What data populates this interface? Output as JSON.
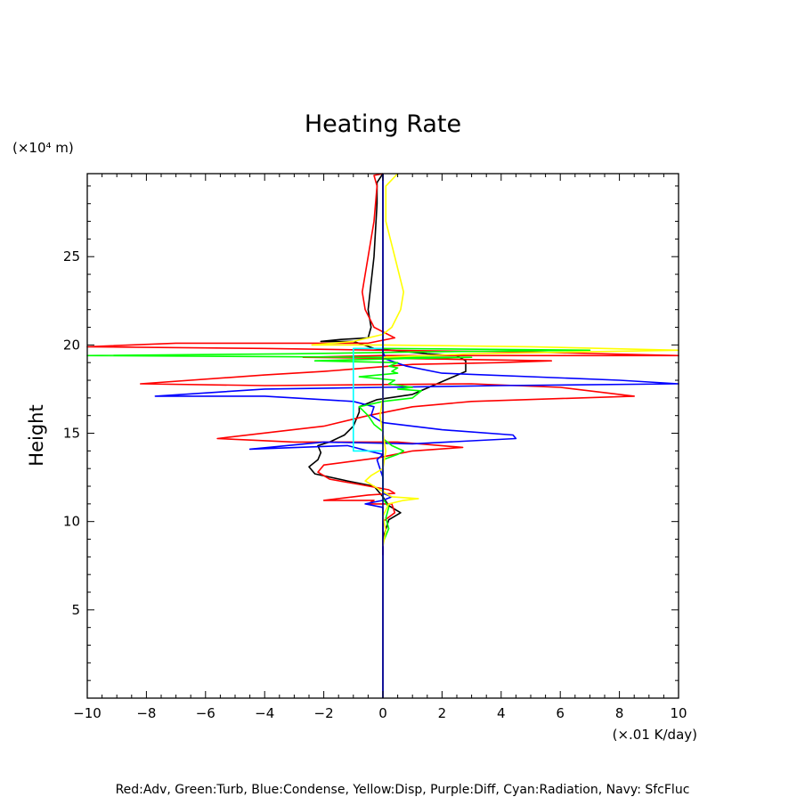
{
  "chart_data": {
    "type": "line",
    "title": "Heating Rate",
    "ylabel": "Height",
    "yunit": "(×10⁴ m)",
    "xunit": "(×.01 K/day)",
    "xlim": [
      -10,
      10
    ],
    "ylim": [
      0,
      29.7
    ],
    "xticks": [
      -10,
      -8,
      -6,
      -4,
      -2,
      0,
      2,
      4,
      6,
      8,
      10
    ],
    "xtick_labels": [
      "−10",
      "−8",
      "−6",
      "−4",
      "−2",
      "0",
      "2",
      "4",
      "6",
      "8",
      "10"
    ],
    "yticks": [
      5,
      10,
      15,
      20,
      25
    ],
    "ytick_labels": [
      "5",
      "10",
      "15",
      "20",
      "25"
    ],
    "grid": false,
    "legend_text": "Red:Adv, Green:Turb, Blue:Condense, Yellow:Disp, Purple:Diff, Cyan:Radiation, Navy: SfcFluc",
    "series": [
      {
        "color": "#000000",
        "points": [
          [
            0,
            8.1
          ],
          [
            0,
            9
          ],
          [
            0.2,
            10.1
          ],
          [
            0.6,
            10.5
          ],
          [
            0.2,
            10.9
          ],
          [
            0,
            11.4
          ],
          [
            -0.3,
            12
          ],
          [
            -1.2,
            12.3
          ],
          [
            -2.3,
            12.7
          ],
          [
            -2.5,
            13.1
          ],
          [
            -2.2,
            13.5
          ],
          [
            -2.1,
            13.9
          ],
          [
            -2.2,
            14.3
          ],
          [
            -1.8,
            14.5
          ],
          [
            -1.3,
            14.9
          ],
          [
            -1,
            15.4
          ],
          [
            -0.8,
            16.2
          ],
          [
            -0.8,
            16.5
          ],
          [
            -0.2,
            16.9
          ],
          [
            1,
            17.2
          ],
          [
            2.8,
            18.5
          ],
          [
            2.8,
            19.1
          ],
          [
            2.5,
            19.4
          ],
          [
            1.5,
            19.5
          ],
          [
            -0.3,
            19.8
          ],
          [
            -1,
            20.2
          ],
          [
            -2.1,
            20.2
          ],
          [
            -1.5,
            20.3
          ],
          [
            -0.5,
            20.4
          ],
          [
            -0.4,
            21
          ],
          [
            -0.5,
            22
          ],
          [
            -0.3,
            25
          ],
          [
            -0.2,
            28
          ],
          [
            -0.2,
            29.2
          ],
          [
            0,
            29.7
          ]
        ]
      },
      {
        "color": "#ff0000",
        "points": [
          [
            0,
            8.1
          ],
          [
            0,
            10
          ],
          [
            0.4,
            10.5
          ],
          [
            0.3,
            11
          ],
          [
            -0.5,
            11
          ],
          [
            -0.3,
            11.2
          ],
          [
            -2,
            11.2
          ],
          [
            -0.5,
            11.5
          ],
          [
            0.4,
            11.6
          ],
          [
            0.2,
            11.8
          ],
          [
            -0.8,
            12.1
          ],
          [
            -1.8,
            12.4
          ],
          [
            -2.2,
            12.8
          ],
          [
            -2,
            13.2
          ],
          [
            -0.2,
            13.6
          ],
          [
            1,
            14
          ],
          [
            2.7,
            14.2
          ],
          [
            0.5,
            14.5
          ],
          [
            -3,
            14.5
          ],
          [
            -5.6,
            14.7
          ],
          [
            -2,
            15.4
          ],
          [
            -0.5,
            16
          ],
          [
            1,
            16.5
          ],
          [
            3,
            16.8
          ],
          [
            8.5,
            17.1
          ],
          [
            6,
            17.6
          ],
          [
            3,
            17.8
          ],
          [
            -4,
            17.7
          ],
          [
            -8.2,
            17.8
          ],
          [
            -4,
            18.3
          ],
          [
            -2,
            18.5
          ],
          [
            -0.5,
            18.7
          ],
          [
            1,
            18.9
          ],
          [
            4,
            19
          ],
          [
            5.7,
            19.1
          ],
          [
            2,
            19.2
          ],
          [
            -2.7,
            19.3
          ],
          [
            0,
            19.4
          ],
          [
            10,
            19.4
          ],
          [
            5,
            19.6
          ],
          [
            0,
            19.7
          ],
          [
            -4,
            19.8
          ],
          [
            -10,
            19.9
          ],
          [
            -7,
            20.1
          ],
          [
            -0.5,
            20.1
          ],
          [
            0.4,
            20.4
          ],
          [
            -0.3,
            21
          ],
          [
            -0.6,
            22
          ],
          [
            -0.7,
            23
          ],
          [
            -0.5,
            25
          ],
          [
            -0.3,
            27
          ],
          [
            -0.2,
            29
          ],
          [
            -0.3,
            29.6
          ],
          [
            0,
            29.7
          ]
        ]
      },
      {
        "color": "#0000ff",
        "points": [
          [
            0,
            0
          ],
          [
            0,
            10.8
          ],
          [
            -0.6,
            11
          ],
          [
            0,
            11.2
          ],
          [
            0.3,
            11.4
          ],
          [
            0,
            11.6
          ],
          [
            0,
            12.5
          ],
          [
            -0.1,
            13
          ],
          [
            -0.2,
            13.5
          ],
          [
            0,
            13.8
          ],
          [
            -0.5,
            14
          ],
          [
            -1.2,
            14.3
          ],
          [
            -4.5,
            14.1
          ],
          [
            -2,
            14.5
          ],
          [
            1,
            14.4
          ],
          [
            4.5,
            14.7
          ],
          [
            4.4,
            14.9
          ],
          [
            2,
            15.2
          ],
          [
            0,
            15.6
          ],
          [
            -0.4,
            16
          ],
          [
            -0.3,
            16.5
          ],
          [
            -1,
            16.8
          ],
          [
            -4,
            17.1
          ],
          [
            -7.7,
            17.1
          ],
          [
            -4,
            17.5
          ],
          [
            0,
            17.6
          ],
          [
            4,
            17.7
          ],
          [
            10,
            17.8
          ],
          [
            8,
            18
          ],
          [
            2,
            18.4
          ],
          [
            0.8,
            18.8
          ],
          [
            0.1,
            19.2
          ],
          [
            0,
            19.6
          ],
          [
            0,
            29.7
          ]
        ]
      },
      {
        "color": "#00ff00",
        "points": [
          [
            0,
            8.8
          ],
          [
            0.2,
            9.6
          ],
          [
            0.1,
            10.2
          ],
          [
            0.2,
            10.8
          ],
          [
            0,
            11.3
          ],
          [
            0,
            12
          ],
          [
            0,
            12.8
          ],
          [
            0,
            13.5
          ],
          [
            0.5,
            13.8
          ],
          [
            0.7,
            14
          ],
          [
            0.3,
            14.3
          ],
          [
            0,
            14.7
          ],
          [
            0,
            15.1
          ],
          [
            -0.3,
            15.5
          ],
          [
            -0.5,
            16
          ],
          [
            -0.8,
            16.5
          ],
          [
            0,
            16.8
          ],
          [
            1,
            17
          ],
          [
            1.3,
            17.4
          ],
          [
            0.5,
            17.5
          ],
          [
            1,
            17.6
          ],
          [
            0.2,
            17.8
          ],
          [
            0.4,
            18
          ],
          [
            -0.8,
            18.2
          ],
          [
            0.5,
            18.4
          ],
          [
            0.3,
            18.5
          ],
          [
            0.5,
            18.7
          ],
          [
            0.2,
            18.8
          ],
          [
            0.5,
            19
          ],
          [
            -2.3,
            19.1
          ],
          [
            0,
            19.2
          ],
          [
            3,
            19.3
          ],
          [
            -0.3,
            19.3
          ],
          [
            -10,
            19.4
          ],
          [
            -3,
            19.5
          ],
          [
            1,
            19.6
          ],
          [
            7,
            19.7
          ],
          [
            0,
            19.8
          ]
        ]
      },
      {
        "color": "#ffff00",
        "points": [
          [
            0,
            8.6
          ],
          [
            0.1,
            9.5
          ],
          [
            0,
            10.3
          ],
          [
            0.2,
            11
          ],
          [
            0.7,
            11.2
          ],
          [
            1.2,
            11.3
          ],
          [
            0.3,
            11.4
          ],
          [
            0,
            11.7
          ],
          [
            -0.3,
            12
          ],
          [
            -0.6,
            12.3
          ],
          [
            -0.4,
            12.6
          ],
          [
            0,
            13
          ],
          [
            0.1,
            14
          ],
          [
            0,
            15
          ],
          [
            -0.1,
            16
          ],
          [
            0,
            17
          ],
          [
            0,
            18
          ],
          [
            0,
            19.3
          ],
          [
            3,
            19.5
          ],
          [
            10,
            19.7
          ],
          [
            5,
            19.9
          ],
          [
            0,
            20
          ],
          [
            -2.4,
            20
          ],
          [
            -1,
            20.2
          ],
          [
            0,
            20.6
          ],
          [
            0.3,
            21
          ],
          [
            0.6,
            22
          ],
          [
            0.7,
            23
          ],
          [
            0.4,
            25
          ],
          [
            0.1,
            27
          ],
          [
            0.1,
            29
          ],
          [
            0.5,
            29.7
          ]
        ]
      },
      {
        "color": "#00ffff",
        "points": [
          [
            0,
            14
          ],
          [
            -1,
            14
          ],
          [
            -1,
            17
          ],
          [
            -1,
            19.8
          ],
          [
            0,
            19.8
          ],
          [
            0,
            20.2
          ]
        ]
      },
      {
        "color": "#000080",
        "points": [
          [
            0,
            0
          ],
          [
            0,
            29.7
          ]
        ]
      }
    ]
  }
}
